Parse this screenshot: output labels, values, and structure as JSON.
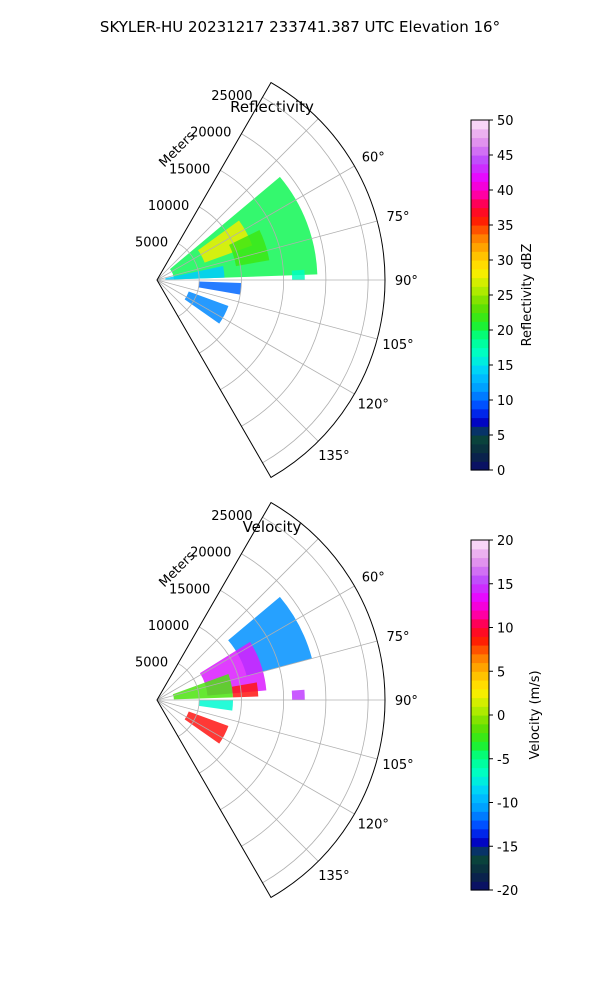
{
  "figure": {
    "suptitle": "SKYLER-HU  20231217  233741.387 UTC Elevation 16°"
  },
  "chart_data": [
    {
      "type": "heatmap",
      "projection": "polar-sector",
      "title": "Reflectivity",
      "range_label": "Meters",
      "range_ticks": [
        5000,
        10000,
        15000,
        20000,
        25000
      ],
      "range_max": 27000,
      "azimuth_range_deg": [
        30,
        150
      ],
      "azimuth_ticks": [
        "60°",
        "75°",
        "90°",
        "105°",
        "120°",
        "135°"
      ],
      "azimuth_tick_values": [
        60,
        75,
        90,
        105,
        120,
        135
      ],
      "grid": true,
      "colorbar": {
        "label": "Reflectivity dBZ",
        "min": 0,
        "max": 50,
        "ticks": [
          0,
          5,
          10,
          15,
          20,
          25,
          30,
          35,
          40,
          45,
          50
        ]
      },
      "echo_regions": [
        {
          "az_start": 50,
          "az_end": 88,
          "r_start": 2000,
          "r_end": 19000,
          "value": 20
        },
        {
          "az_start": 54,
          "az_end": 70,
          "r_start": 6000,
          "r_end": 12000,
          "value": 28
        },
        {
          "az_start": 64,
          "az_end": 80,
          "r_start": 9500,
          "r_end": 13500,
          "value": 22
        },
        {
          "az_start": 78,
          "az_end": 88,
          "r_start": 1000,
          "r_end": 8000,
          "value": 14
        },
        {
          "az_start": 92,
          "az_end": 100,
          "r_start": 5000,
          "r_end": 10000,
          "value": 10
        },
        {
          "az_start": 110,
          "az_end": 125,
          "r_start": 4000,
          "r_end": 9000,
          "value": 11
        },
        {
          "az_start": 86,
          "az_end": 90,
          "r_start": 16000,
          "r_end": 17500,
          "value": 17
        }
      ]
    },
    {
      "type": "heatmap",
      "projection": "polar-sector",
      "title": "Velocity",
      "range_label": "Meters",
      "range_ticks": [
        5000,
        10000,
        15000,
        20000,
        25000
      ],
      "range_max": 27000,
      "azimuth_range_deg": [
        30,
        150
      ],
      "azimuth_ticks": [
        "60°",
        "75°",
        "90°",
        "105°",
        "120°",
        "135°"
      ],
      "azimuth_tick_values": [
        60,
        75,
        90,
        105,
        120,
        135
      ],
      "grid": true,
      "colorbar": {
        "label": "Velocity (m/s)",
        "min": -20,
        "max": 20,
        "ticks": [
          -20,
          -15,
          -10,
          -5,
          0,
          5,
          10,
          15,
          20
        ]
      },
      "echo_regions": [
        {
          "az_start": 50,
          "az_end": 75,
          "r_start": 11000,
          "r_end": 19000,
          "value": -11
        },
        {
          "az_start": 58,
          "az_end": 85,
          "r_start": 6000,
          "r_end": 13000,
          "value": 14
        },
        {
          "az_start": 70,
          "az_end": 88,
          "r_start": 2000,
          "r_end": 9000,
          "value": -2
        },
        {
          "az_start": 80,
          "az_end": 88,
          "r_start": 9000,
          "r_end": 12000,
          "value": 9
        },
        {
          "az_start": 90,
          "az_end": 98,
          "r_start": 5000,
          "r_end": 9000,
          "value": -7
        },
        {
          "az_start": 110,
          "az_end": 125,
          "r_start": 4000,
          "r_end": 9000,
          "value": 9
        },
        {
          "az_start": 86,
          "az_end": 90,
          "r_start": 16000,
          "r_end": 17500,
          "value": 15
        }
      ]
    }
  ]
}
